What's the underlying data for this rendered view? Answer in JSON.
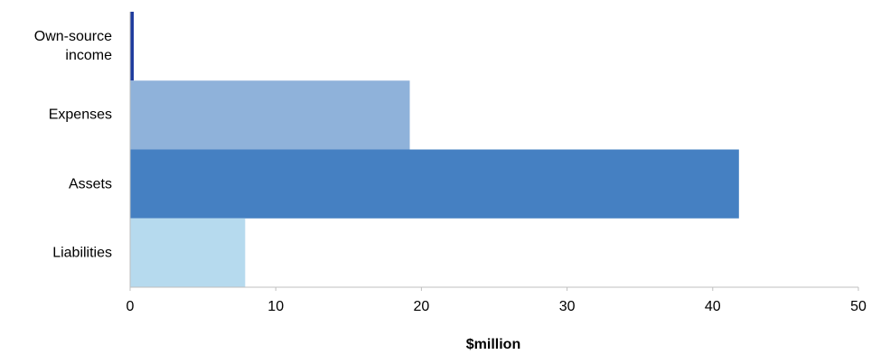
{
  "chart_data": {
    "type": "bar",
    "orientation": "horizontal",
    "categories": [
      "Own-source income",
      "Expenses",
      "Assets",
      "Liabilities"
    ],
    "values": [
      0.25,
      19.2,
      41.8,
      7.9
    ],
    "colors": [
      "#1f3c9e",
      "#8fb2da",
      "#4580c2",
      "#b6daee"
    ],
    "xlabel": "$million",
    "xlim": [
      0,
      50
    ],
    "xticks": [
      0,
      10,
      20,
      30,
      40,
      50
    ]
  }
}
